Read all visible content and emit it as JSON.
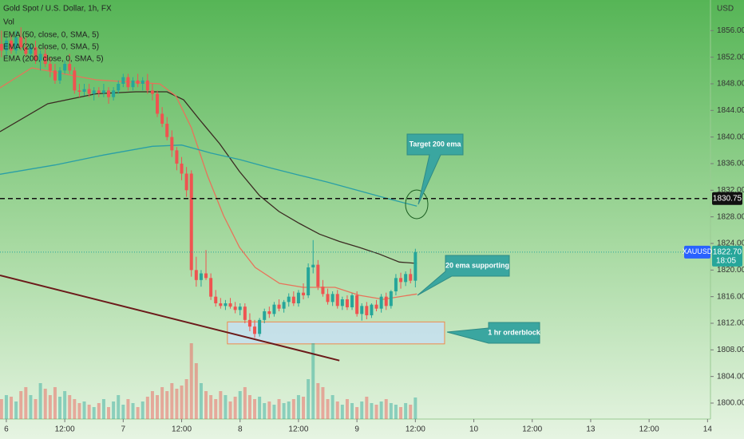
{
  "chart_data": {
    "type": "candlestick",
    "title": "Gold Spot / U.S. Dollar, 1h, FX",
    "volume_label": "Vol",
    "currency": "USD",
    "xlim": [
      -1.3,
      144.6
    ],
    "xticks": [
      {
        "value": 0,
        "label": "6"
      },
      {
        "value": 12,
        "label": "12:00"
      },
      {
        "value": 24,
        "label": "7"
      },
      {
        "value": 36,
        "label": "12:00"
      },
      {
        "value": 48,
        "label": "8"
      },
      {
        "value": 60,
        "label": "12:00"
      },
      {
        "value": 72,
        "label": "9"
      },
      {
        "value": 84,
        "label": "12:00"
      },
      {
        "value": 96,
        "label": "10"
      },
      {
        "value": 108,
        "label": "12:00"
      },
      {
        "value": 120,
        "label": "13"
      },
      {
        "value": 132,
        "label": "12:00"
      },
      {
        "value": 144,
        "label": "14"
      }
    ],
    "ylim": [
      1797.6,
      1860.6
    ],
    "yticks": [
      {
        "value": 1800,
        "label": "1800.00"
      },
      {
        "value": 1804,
        "label": "1804.00"
      },
      {
        "value": 1808,
        "label": "1808.00"
      },
      {
        "value": 1812,
        "label": "1812.00"
      },
      {
        "value": 1816,
        "label": "1816.00"
      },
      {
        "value": 1820,
        "label": "1820.00"
      },
      {
        "value": 1824,
        "label": "1824.00"
      },
      {
        "value": 1828,
        "label": "1828.00"
      },
      {
        "value": 1832,
        "label": "1832.00"
      },
      {
        "value": 1836,
        "label": "1836.00"
      },
      {
        "value": 1840,
        "label": "1840.00"
      },
      {
        "value": 1844,
        "label": "1844.00"
      },
      {
        "value": 1848,
        "label": "1848.00"
      },
      {
        "value": 1852,
        "label": "1852.00"
      },
      {
        "value": 1856,
        "label": "1856.00"
      }
    ],
    "grid": false,
    "up_color": "#26a69a",
    "down_color": "#ef5350",
    "volume_ylim": [
      0,
      100
    ],
    "candles": {
      "x": [
        -1,
        0,
        1,
        2,
        3,
        4,
        5,
        6,
        7,
        8,
        9,
        10,
        11,
        12,
        13,
        14,
        15,
        16,
        17,
        18,
        19,
        20,
        21,
        22,
        23,
        24,
        25,
        26,
        27,
        28,
        29,
        30,
        31,
        32,
        33,
        34,
        35,
        36,
        37,
        38,
        39,
        40,
        41,
        42,
        43,
        44,
        45,
        46,
        47,
        48,
        49,
        50,
        51,
        52,
        53,
        54,
        55,
        56,
        57,
        58,
        59,
        60,
        61,
        62,
        63,
        64,
        65,
        66,
        67,
        68,
        69,
        70,
        71,
        72,
        73,
        74,
        75,
        76,
        77,
        78,
        79,
        80,
        81,
        82,
        83,
        84
      ],
      "open": [
        1854,
        1853,
        1854.5,
        1853,
        1855,
        1853.5,
        1852.5,
        1853.5,
        1851.5,
        1852.5,
        1851,
        1850,
        1848.5,
        1850,
        1851,
        1850,
        1847,
        1846.8,
        1847.2,
        1846.5,
        1847,
        1846.6,
        1847,
        1846,
        1847,
        1848,
        1849,
        1847.5,
        1848.5,
        1848,
        1848.5,
        1847,
        1846.5,
        1843.5,
        1842,
        1840,
        1838,
        1836,
        1834.5,
        1834.5,
        1820,
        1818.5,
        1819.5,
        1818.8,
        1816,
        1815,
        1814.6,
        1815,
        1814.5,
        1814,
        1814.5,
        1812.5,
        1811.5,
        1810.4,
        1812.5,
        1813.8,
        1813.4,
        1814.8,
        1814.2,
        1815.2,
        1816,
        1815,
        1816.6,
        1816.2,
        1820.4,
        1820.8,
        1817.5,
        1816.4,
        1815.2,
        1816.4,
        1814.6,
        1815.6,
        1814.4,
        1816.2,
        1813.4,
        1814.6,
        1813.2,
        1814.8,
        1814.2,
        1816,
        1814.6,
        1816.8,
        1818.8,
        1818.2,
        1819.4,
        1818.4
      ],
      "high": [
        1856,
        1855,
        1855.5,
        1856,
        1856.5,
        1855,
        1854,
        1854.5,
        1853,
        1853.5,
        1852,
        1851,
        1850.5,
        1851.5,
        1852.5,
        1850.5,
        1848,
        1848,
        1848,
        1847.5,
        1847.5,
        1848,
        1847.5,
        1847.5,
        1848.5,
        1849.5,
        1849.5,
        1849,
        1849.5,
        1849,
        1849.5,
        1848,
        1847,
        1844.5,
        1843,
        1841,
        1838.5,
        1837,
        1835.5,
        1835,
        1822,
        1820,
        1823,
        1819.5,
        1817,
        1815.8,
        1815.5,
        1815.8,
        1815.2,
        1815,
        1815,
        1813.5,
        1812.5,
        1812.8,
        1814.2,
        1814.5,
        1815.2,
        1815.6,
        1815.5,
        1816.5,
        1816.8,
        1817,
        1818,
        1821,
        1824.5,
        1821.5,
        1818.5,
        1817.2,
        1816.8,
        1817,
        1816,
        1816.2,
        1816.5,
        1816.8,
        1815,
        1815.2,
        1815,
        1815.5,
        1816.4,
        1816.6,
        1817,
        1819.4,
        1819.6,
        1819.8,
        1820.2,
        1823.2
      ],
      "low": [
        1852,
        1852,
        1852.5,
        1852.5,
        1853,
        1852,
        1851.5,
        1851,
        1850,
        1850.5,
        1849,
        1848,
        1848,
        1849.5,
        1849.5,
        1846.5,
        1846,
        1846.2,
        1846,
        1845.5,
        1846,
        1846,
        1845,
        1845.5,
        1846.5,
        1847.5,
        1847,
        1847,
        1847.5,
        1847,
        1846.5,
        1845.5,
        1843,
        1841.5,
        1839.5,
        1837,
        1835,
        1833.5,
        1831,
        1819,
        1817.5,
        1817.5,
        1818.5,
        1815.5,
        1814.5,
        1814.2,
        1814,
        1814.2,
        1813.5,
        1813.2,
        1812,
        1810.8,
        1809.8,
        1810,
        1812,
        1812.8,
        1813,
        1813.8,
        1813.6,
        1814.5,
        1814.6,
        1814.5,
        1815.6,
        1815.8,
        1819.5,
        1817,
        1816,
        1814.8,
        1814.6,
        1814.2,
        1814,
        1814,
        1814,
        1813,
        1812.4,
        1812.6,
        1812.8,
        1813.8,
        1813.6,
        1814,
        1814.2,
        1816.2,
        1817.2,
        1817.6,
        1818,
        1817.4
      ],
      "close": [
        1853,
        1854.5,
        1853,
        1855,
        1853.5,
        1852.5,
        1853.5,
        1851.5,
        1852.5,
        1851,
        1850,
        1848.5,
        1850,
        1851,
        1850,
        1847,
        1846.8,
        1847.2,
        1846.5,
        1847,
        1846.6,
        1847,
        1846,
        1847,
        1848,
        1849,
        1847.5,
        1848.5,
        1848,
        1848.5,
        1847,
        1846.5,
        1843.5,
        1842,
        1840,
        1838,
        1836,
        1834.5,
        1832,
        1820,
        1818.5,
        1819.5,
        1818.8,
        1816,
        1815,
        1814.6,
        1815,
        1814.5,
        1814,
        1814.5,
        1812.5,
        1811.5,
        1810.4,
        1812.5,
        1813.8,
        1813.4,
        1814.8,
        1814.2,
        1815.2,
        1816,
        1815,
        1816.6,
        1816.2,
        1820.4,
        1820.8,
        1817.5,
        1816.4,
        1815.2,
        1816.4,
        1814.6,
        1815.6,
        1814.4,
        1816.2,
        1813.4,
        1814.6,
        1813.2,
        1814.8,
        1814.2,
        1816,
        1814.6,
        1816.8,
        1818.8,
        1818.2,
        1819.4,
        1818.4,
        1822.7
      ],
      "volume": [
        25,
        30,
        28,
        22,
        35,
        40,
        30,
        25,
        45,
        38,
        30,
        40,
        28,
        35,
        30,
        25,
        20,
        22,
        18,
        15,
        20,
        25,
        15,
        22,
        30,
        18,
        25,
        20,
        15,
        22,
        28,
        35,
        30,
        40,
        35,
        45,
        38,
        42,
        50,
        95,
        70,
        45,
        35,
        30,
        25,
        35,
        30,
        22,
        28,
        35,
        40,
        30,
        25,
        28,
        20,
        22,
        18,
        25,
        20,
        22,
        25,
        30,
        28,
        50,
        95,
        45,
        40,
        25,
        30,
        22,
        18,
        25,
        20,
        15,
        22,
        28,
        20,
        18,
        22,
        25,
        20,
        18,
        15,
        20,
        18,
        27
      ]
    },
    "series": [
      {
        "name": "EMA (50, close, 0, SMA, 5)",
        "color": "#3b2a22",
        "x": [
          -1.3,
          8.5,
          18.4,
          26.6,
          33,
          36.4,
          39.7,
          43.8,
          47.9,
          52,
          56,
          60.2,
          64.3,
          68.4,
          72.5,
          76.6,
          80.7,
          84.3
        ],
        "values": [
          1840.8,
          1845,
          1846.5,
          1846.8,
          1846.8,
          1845.6,
          1842.6,
          1839,
          1834.8,
          1831.2,
          1828.8,
          1827,
          1825.4,
          1824.3,
          1823.4,
          1822.4,
          1821.2,
          1821
        ]
      },
      {
        "name": "EMA (20, close, 0, SMA, 5)",
        "color": "#e8735a",
        "x": [
          -1.3,
          5.2,
          18.4,
          31.5,
          34.8,
          38,
          41.3,
          44.6,
          47.9,
          51.1,
          56.1,
          61,
          67.5,
          72.5,
          77.4,
          84.3
        ],
        "values": [
          1847.4,
          1850.4,
          1848.6,
          1848,
          1846.2,
          1841.4,
          1834.2,
          1828.2,
          1823.4,
          1820.4,
          1818,
          1817.4,
          1817.4,
          1816.2,
          1815.6,
          1816.4
        ]
      },
      {
        "name": "EMA (200, close, 0, SMA, 5)",
        "color": "#2a9fa6",
        "x": [
          -1.3,
          10,
          20,
          30,
          36,
          42,
          48,
          54,
          60,
          66,
          72,
          78,
          84.3
        ],
        "values": [
          1834.4,
          1835.8,
          1837.3,
          1838.6,
          1838.8,
          1837.6,
          1836.6,
          1835.4,
          1834.3,
          1833.2,
          1832,
          1830.8,
          1829.6
        ]
      }
    ],
    "hline": 1830.75,
    "last_price": {
      "value": 1822.7,
      "label": "1822.70"
    },
    "symbol": "XAUUSD",
    "countdown": "18:05",
    "trendline": {
      "x": [
        -1.3,
        68.4
      ],
      "values": [
        1819.2,
        1806.4
      ]
    },
    "orderblock": {
      "x": [
        45.4,
        90
      ],
      "values": [
        1808.9,
        1812.2
      ]
    },
    "annotations": [
      "Target 200 ema",
      "20 ema supporting",
      "1 hr orderblock"
    ]
  }
}
